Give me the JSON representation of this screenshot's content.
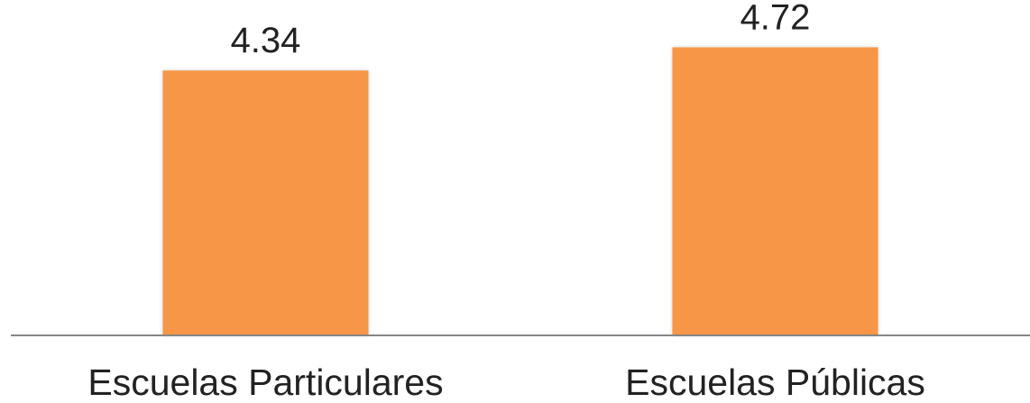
{
  "chart_data": {
    "type": "bar",
    "categories": [
      "Escuelas Particulares",
      "Escuelas Públicas"
    ],
    "values": [
      4.34,
      4.72
    ],
    "data_labels": [
      "4.34",
      "4.72"
    ],
    "ylim": [
      0,
      5.2
    ],
    "bar_color": "#F79646",
    "axis_color": "#868686",
    "grid": false,
    "legend": "none"
  }
}
